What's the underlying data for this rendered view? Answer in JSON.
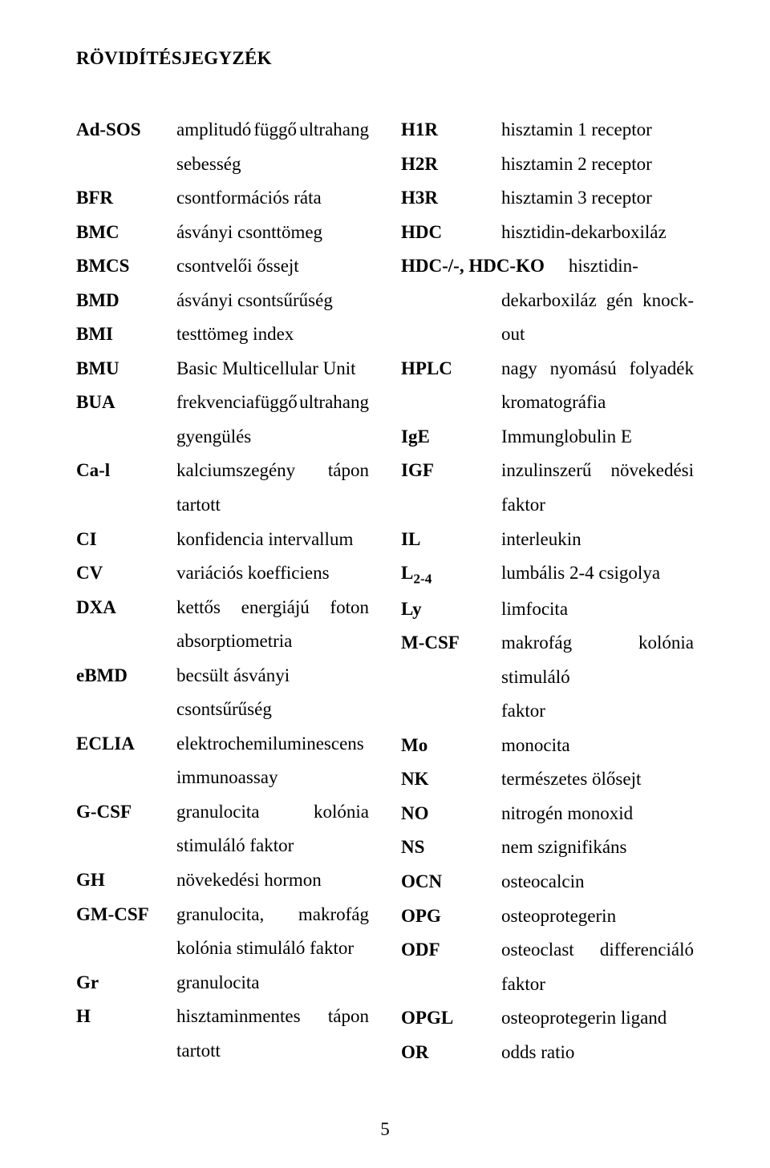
{
  "title": "RÖVIDÍTÉSJEGYZÉK",
  "page_number": "5",
  "left": {
    "AdSOS": {
      "abbr": "Ad-SOS",
      "l1a": "amplitudó",
      "l1b": "függő",
      "l1c": "ultrahang",
      "l2": "sebesség"
    },
    "BFR": {
      "abbr": "BFR",
      "def": "csontformációs ráta"
    },
    "BMC": {
      "abbr": "BMC",
      "def": "ásványi csonttömeg"
    },
    "BMCS": {
      "abbr": "BMCS",
      "def": "csontvelői őssejt"
    },
    "BMD": {
      "abbr": "BMD",
      "def": "ásványi csontsűrűség"
    },
    "BMI": {
      "abbr": "BMI",
      "def": "testtömeg index"
    },
    "BMU": {
      "abbr": "BMU",
      "def": "Basic Multicellular Unit"
    },
    "BUA": {
      "abbr": "BUA",
      "l1a": "frekvenciafüggő",
      "l1b": "ultrahang",
      "l2": "gyengülés"
    },
    "Cal": {
      "abbr": "Ca-l",
      "l1a": "kalciumszegény",
      "l1b": "tápon",
      "l2": "tartott"
    },
    "CI": {
      "abbr": "CI",
      "def": "konfidencia intervallum"
    },
    "CV": {
      "abbr": "CV",
      "def": "variációs koefficiens"
    },
    "DXA": {
      "abbr": "DXA",
      "l1a": "kettős",
      "l1b": "energiájú",
      "l1c": "foton",
      "l2": "absorptiometria"
    },
    "eBMD": {
      "abbr": "eBMD",
      "l1": "becsült ásványi",
      "l2": "csontsűrűség"
    },
    "ECLIA": {
      "abbr": "ECLIA",
      "l1": "elektrochemiluminescens",
      "l2": "immunoassay"
    },
    "GCSF": {
      "abbr": "G-CSF",
      "l1a": "granulocita",
      "l1b": "kolónia",
      "l2": "stimuláló faktor"
    },
    "GH": {
      "abbr": "GH",
      "def": "növekedési hormon"
    },
    "GMCSF": {
      "abbr": "GM-CSF",
      "l1a": "granulocita,",
      "l1b": "makrofág",
      "l2": "kolónia stimuláló faktor"
    },
    "Gr": {
      "abbr": "Gr",
      "def": "granulocita"
    },
    "H": {
      "abbr": "H",
      "l1a": "hisztaminmentes",
      "l1b": "tápon",
      "l2": "tartott"
    }
  },
  "right": {
    "H1R": {
      "abbr": "H1R",
      "def": "hisztamin 1 receptor"
    },
    "H2R": {
      "abbr": "H2R",
      "def": "hisztamin 2 receptor"
    },
    "H3R": {
      "abbr": "H3R",
      "def": "hisztamin 3 receptor"
    },
    "HDC": {
      "abbr": "HDC",
      "def": "hisztidin-dekarboxiláz"
    },
    "HDCKO": {
      "abbr": "HDC-/-, HDC-KO",
      "l1": "hisztidin-",
      "l2a": "dekarboxiláz",
      "l2b": "gén",
      "l2c": "knock-",
      "l3": "out"
    },
    "HPLC": {
      "abbr": "HPLC",
      "l1a": "nagy",
      "l1b": "nyomású",
      "l1c": "folyadék",
      "l2": "kromatográfia"
    },
    "IgE": {
      "abbr": "IgE",
      "def": "Immunglobulin E"
    },
    "IGF": {
      "abbr": "IGF",
      "l1a": "inzulinszerű",
      "l1b": "növekedési",
      "l2": "faktor"
    },
    "IL": {
      "abbr": "IL",
      "def": "interleukin"
    },
    "L24": {
      "abbr_pre": "L",
      "abbr_sub": "2-4",
      "def": "lumbális 2-4 csigolya"
    },
    "Ly": {
      "abbr": "Ly",
      "def": "limfocita"
    },
    "MCSF": {
      "abbr": "M-CSF",
      "l1": "makrofág kolónia stimuláló",
      "l2": "faktor"
    },
    "Mo": {
      "abbr": "Mo",
      "def": "monocita"
    },
    "NK": {
      "abbr": "NK",
      "def": "természetes ölősejt"
    },
    "NO": {
      "abbr": "NO",
      "def": "nitrogén monoxid"
    },
    "NS": {
      "abbr": "NS",
      "def": "nem szignifikáns"
    },
    "OCN": {
      "abbr": "OCN",
      "def": "osteocalcin"
    },
    "OPG": {
      "abbr": "OPG",
      "def": "osteoprotegerin"
    },
    "ODF": {
      "abbr": "ODF",
      "l1a": "osteoclast",
      "l1b": "differenciáló",
      "l2": "faktor"
    },
    "OPGL": {
      "abbr": "OPGL",
      "def": "osteoprotegerin ligand"
    },
    "OR": {
      "abbr": "OR",
      "def": "odds ratio"
    }
  }
}
